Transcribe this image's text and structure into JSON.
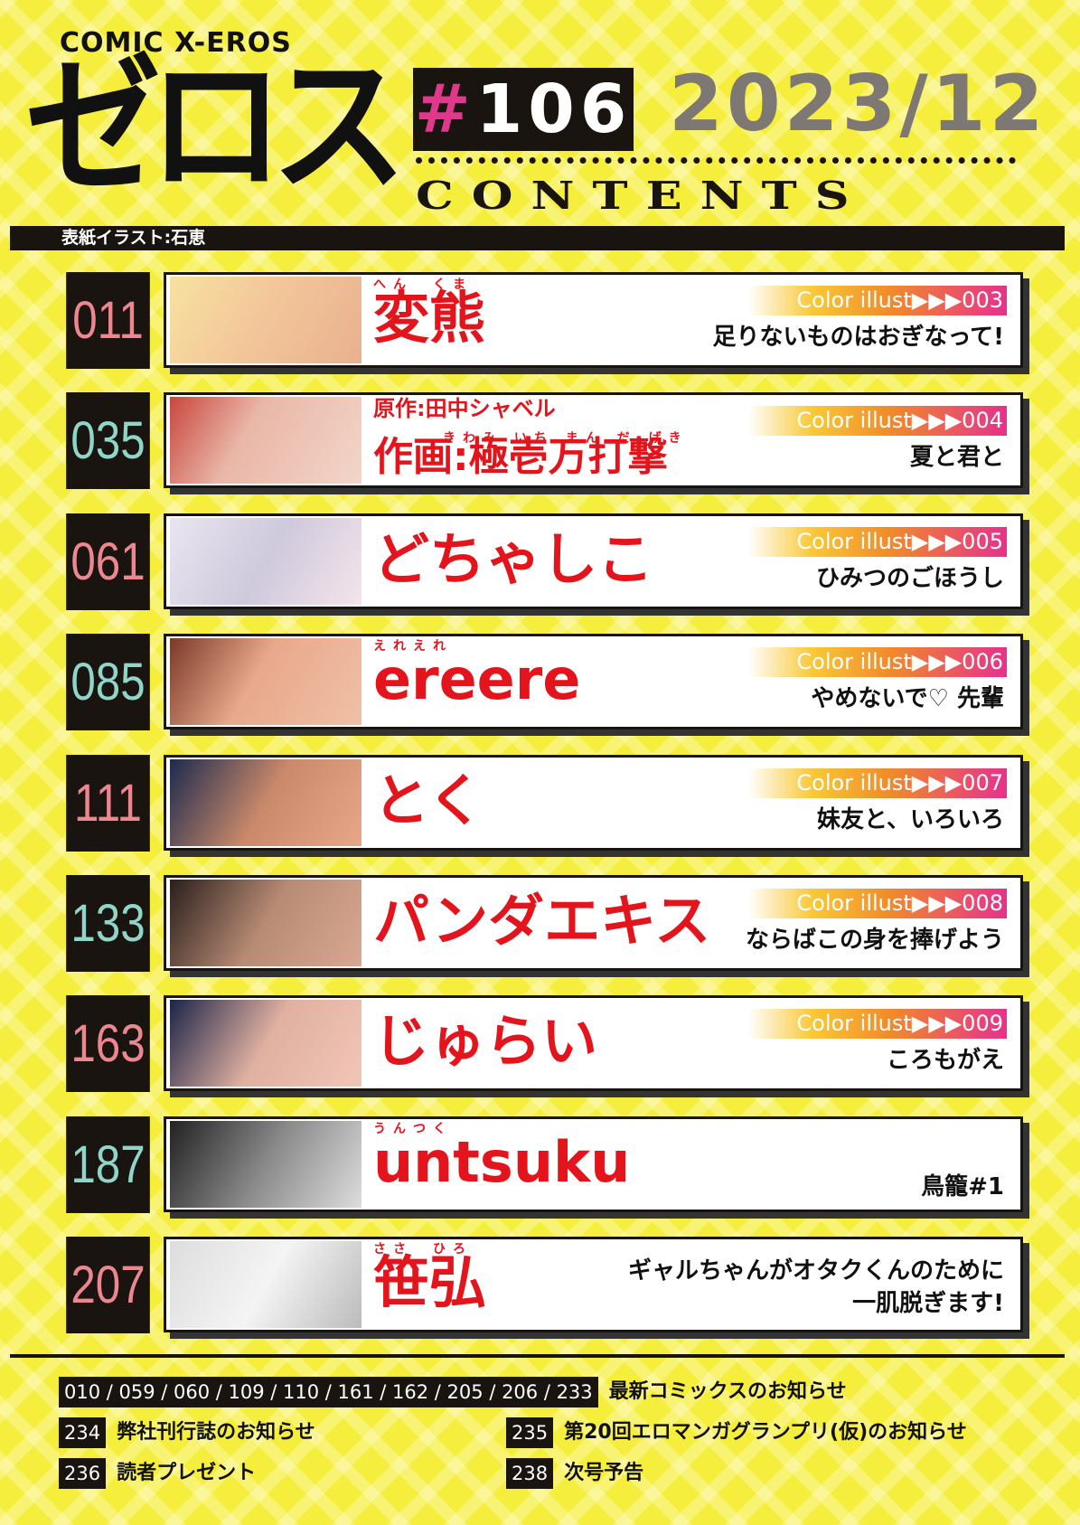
{
  "header": {
    "brand": "COMIC X-EROS",
    "logo": "ゼロス",
    "issue": "#106",
    "date": "2023/12",
    "contents_label": "CONTENTS",
    "cover_credit": "表紙イラスト:石恵"
  },
  "entries": [
    {
      "page": "011",
      "author_reading": "へん　くま",
      "author": [
        "変熊"
      ],
      "color_illust": "Color illust▶▶▶003",
      "title": "足りないものはおぎなって!"
    },
    {
      "page": "035",
      "author_reading": "きわみ いち まん だ げき",
      "author": [
        "原作:田中シャベル",
        "作画:極壱万打撃"
      ],
      "color_illust": "Color illust▶▶▶004",
      "title": "夏と君と"
    },
    {
      "page": "061",
      "author": [
        "どちゃしこ"
      ],
      "color_illust": "Color illust▶▶▶005",
      "title": "ひみつのごほうし"
    },
    {
      "page": "085",
      "author_reading": "えれえれ",
      "author": [
        "ereere"
      ],
      "color_illust": "Color illust▶▶▶006",
      "title": "やめないで♡ 先輩"
    },
    {
      "page": "111",
      "author": [
        "とく"
      ],
      "color_illust": "Color illust▶▶▶007",
      "title": "妹友と、いろいろ"
    },
    {
      "page": "133",
      "author": [
        "パンダエキス"
      ],
      "color_illust": "Color illust▶▶▶008",
      "title": "ならばこの身を捧げよう"
    },
    {
      "page": "163",
      "author": [
        "じゅらい"
      ],
      "color_illust": "Color illust▶▶▶009",
      "title": "ころもがえ"
    },
    {
      "page": "187",
      "author_reading": "うんつく",
      "author": [
        "untsuku"
      ],
      "title": "鳥籠#1"
    },
    {
      "page": "207",
      "author_reading": "ささ　ひろ",
      "author": [
        "笹弘"
      ],
      "title": "ギャルちゃんがオタクくんのために\n一肌脱ぎます!"
    }
  ],
  "footer": [
    {
      "pages": "010 / 059 / 060 / 109 / 110 / 161 / 162 / 205 / 206 / 233",
      "label": "最新コミックスのお知らせ"
    },
    {
      "pages": "234",
      "label": "弊社刊行誌のお知らせ"
    },
    {
      "pages": "235",
      "label": "第20回エロマンガグランプリ(仮)のお知らせ"
    },
    {
      "pages": "236",
      "label": "読者プレゼント"
    },
    {
      "pages": "238",
      "label": "次号予告"
    }
  ]
}
